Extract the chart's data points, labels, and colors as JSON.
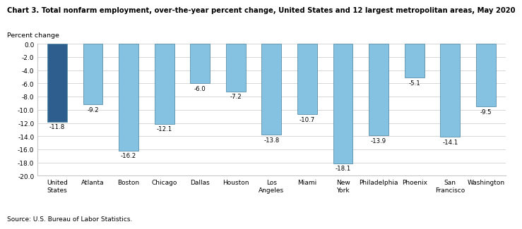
{
  "title": "Chart 3. Total nonfarm employment, over-the-year percent change, United States and 12 largest metropolitan areas, May 2020",
  "ylabel": "Percent change",
  "source": "Source: U.S. Bureau of Labor Statistics.",
  "categories": [
    "United\nStates",
    "Atlanta",
    "Boston",
    "Chicago",
    "Dallas",
    "Houston",
    "Los\nAngeles",
    "Miami",
    "New\nYork",
    "Philadelphia",
    "Phoenix",
    "San\nFrancisco",
    "Washington"
  ],
  "values": [
    -11.8,
    -9.2,
    -16.2,
    -12.1,
    -6.0,
    -7.2,
    -13.8,
    -10.7,
    -18.1,
    -13.9,
    -5.1,
    -14.1,
    -9.5
  ],
  "bar_colors": [
    "#2E5E8E",
    "#85C1E0",
    "#85C1E0",
    "#85C1E0",
    "#85C1E0",
    "#85C1E0",
    "#85C1E0",
    "#85C1E0",
    "#85C1E0",
    "#85C1E0",
    "#85C1E0",
    "#85C1E0",
    "#85C1E0"
  ],
  "bar_edge_color": "#5A8FAA",
  "ylim": [
    -20.0,
    0.0
  ],
  "yticks": [
    0.0,
    -2.0,
    -4.0,
    -6.0,
    -8.0,
    -10.0,
    -12.0,
    -14.0,
    -16.0,
    -18.0,
    -20.0
  ],
  "ytick_labels": [
    "0.0",
    "-2.0",
    "-4.0",
    "-6.0",
    "-8.0",
    "-10.0",
    "-12.0",
    "-14.0",
    "-16.0",
    "-18.0",
    "-20.0"
  ],
  "label_fontsize": 6.2,
  "title_fontsize": 7.2,
  "axis_fontsize": 6.5,
  "ylabel_fontsize": 6.8,
  "source_fontsize": 6.5,
  "grid_color": "#C8C8C8",
  "bar_width": 0.55
}
